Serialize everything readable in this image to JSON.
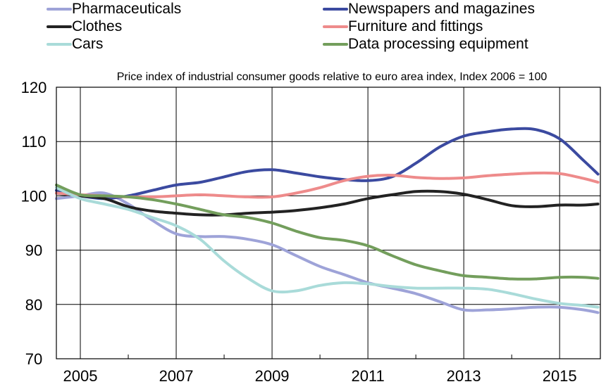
{
  "chart_data": {
    "type": "line",
    "title": "",
    "subtitle": "Price index of industrial consumer goods relative to euro area index, Index 2006 = 100",
    "xlabel": "",
    "ylabel": "",
    "xlim": [
      2004.5,
      2015.85
    ],
    "ylim": [
      70,
      120
    ],
    "x_ticks": [
      "2005",
      "2007",
      "2009",
      "2011",
      "2013",
      "2015"
    ],
    "y_ticks": [
      "70",
      "80",
      "90",
      "100",
      "110",
      "120"
    ],
    "grid": true,
    "legend_position": "top",
    "series": [
      {
        "name": "Pharmaceuticals",
        "color": "#9ea3d8",
        "x": [
          2004.5,
          2005,
          2005.5,
          2006,
          2006.5,
          2007,
          2007.5,
          2008,
          2008.5,
          2009,
          2009.5,
          2010,
          2010.5,
          2011,
          2011.5,
          2012,
          2012.5,
          2013,
          2013.5,
          2014,
          2014.5,
          2015,
          2015.5,
          2015.8
        ],
        "y": [
          99.5,
          100,
          100.5,
          98.5,
          95.5,
          93,
          92.5,
          92.5,
          92,
          91,
          89,
          87,
          85.5,
          84,
          83,
          82,
          80.5,
          79,
          79,
          79.2,
          79.5,
          79.5,
          79,
          78.5
        ]
      },
      {
        "name": "Newspapers and magazines",
        "color": "#3b4aa0",
        "x": [
          2004.5,
          2005,
          2005.5,
          2006,
          2006.5,
          2007,
          2007.5,
          2008,
          2008.5,
          2009,
          2009.5,
          2010,
          2010.5,
          2011,
          2011.5,
          2012,
          2012.5,
          2013,
          2013.5,
          2014,
          2014.5,
          2015,
          2015.5,
          2015.8
        ],
        "y": [
          101,
          100,
          99.5,
          100,
          101,
          102,
          102.5,
          103.5,
          104.5,
          104.8,
          104.2,
          103.5,
          103,
          102.8,
          103.5,
          106,
          109,
          111,
          111.8,
          112.3,
          112.2,
          110.5,
          106.5,
          104
        ]
      },
      {
        "name": "Clothes",
        "color": "#222222",
        "x": [
          2004.5,
          2005,
          2005.5,
          2006,
          2006.5,
          2007,
          2007.5,
          2008,
          2008.5,
          2009,
          2009.5,
          2010,
          2010.5,
          2011,
          2011.5,
          2012,
          2012.5,
          2013,
          2013.5,
          2014,
          2014.5,
          2015,
          2015.5,
          2015.8
        ],
        "y": [
          100.5,
          100,
          99.5,
          98,
          97.2,
          96.8,
          96.5,
          96.5,
          96.8,
          97,
          97.3,
          97.8,
          98.5,
          99.5,
          100.2,
          100.8,
          100.8,
          100.3,
          99.3,
          98.2,
          98,
          98.3,
          98.3,
          98.5
        ]
      },
      {
        "name": "Furniture and fittings",
        "color": "#ee8b8b",
        "x": [
          2004.5,
          2005,
          2005.5,
          2006,
          2006.5,
          2007,
          2007.5,
          2008,
          2008.5,
          2009,
          2009.5,
          2010,
          2010.5,
          2011,
          2011.5,
          2012,
          2012.5,
          2013,
          2013.5,
          2014,
          2014.5,
          2015,
          2015.5,
          2015.8
        ],
        "y": [
          100.5,
          100.2,
          100,
          99.8,
          99.8,
          100,
          100.2,
          100,
          99.8,
          99.8,
          100.5,
          101.5,
          102.8,
          103.6,
          103.8,
          103.4,
          103.2,
          103.3,
          103.7,
          104,
          104.2,
          104.1,
          103.2,
          102.5
        ]
      },
      {
        "name": "Cars",
        "color": "#a9dbd9",
        "x": [
          2004.5,
          2005,
          2005.5,
          2006,
          2006.5,
          2007,
          2007.5,
          2008,
          2008.5,
          2009,
          2009.5,
          2010,
          2010.5,
          2011,
          2011.5,
          2012,
          2012.5,
          2013,
          2013.5,
          2014,
          2014.5,
          2015,
          2015.5,
          2015.8
        ],
        "y": [
          101.5,
          99.5,
          98.5,
          97.5,
          96,
          94.5,
          92,
          88,
          84.8,
          82.5,
          82.5,
          83.5,
          84,
          83.8,
          83.3,
          83,
          83,
          83,
          82.8,
          82,
          81,
          80.2,
          79.8,
          79.5
        ]
      },
      {
        "name": "Data processing equipment",
        "color": "#739e5c",
        "x": [
          2004.5,
          2005,
          2005.5,
          2006,
          2006.5,
          2007,
          2007.5,
          2008,
          2008.5,
          2009,
          2009.5,
          2010,
          2010.5,
          2011,
          2011.5,
          2012,
          2012.5,
          2013,
          2013.5,
          2014,
          2014.5,
          2015,
          2015.5,
          2015.8
        ],
        "y": [
          102,
          100.2,
          100,
          99.8,
          99.3,
          98.5,
          97.5,
          96.5,
          96,
          95,
          93.5,
          92.3,
          91.8,
          90.8,
          89,
          87.3,
          86.2,
          85.3,
          85,
          84.7,
          84.7,
          85,
          85,
          84.8
        ]
      }
    ]
  }
}
